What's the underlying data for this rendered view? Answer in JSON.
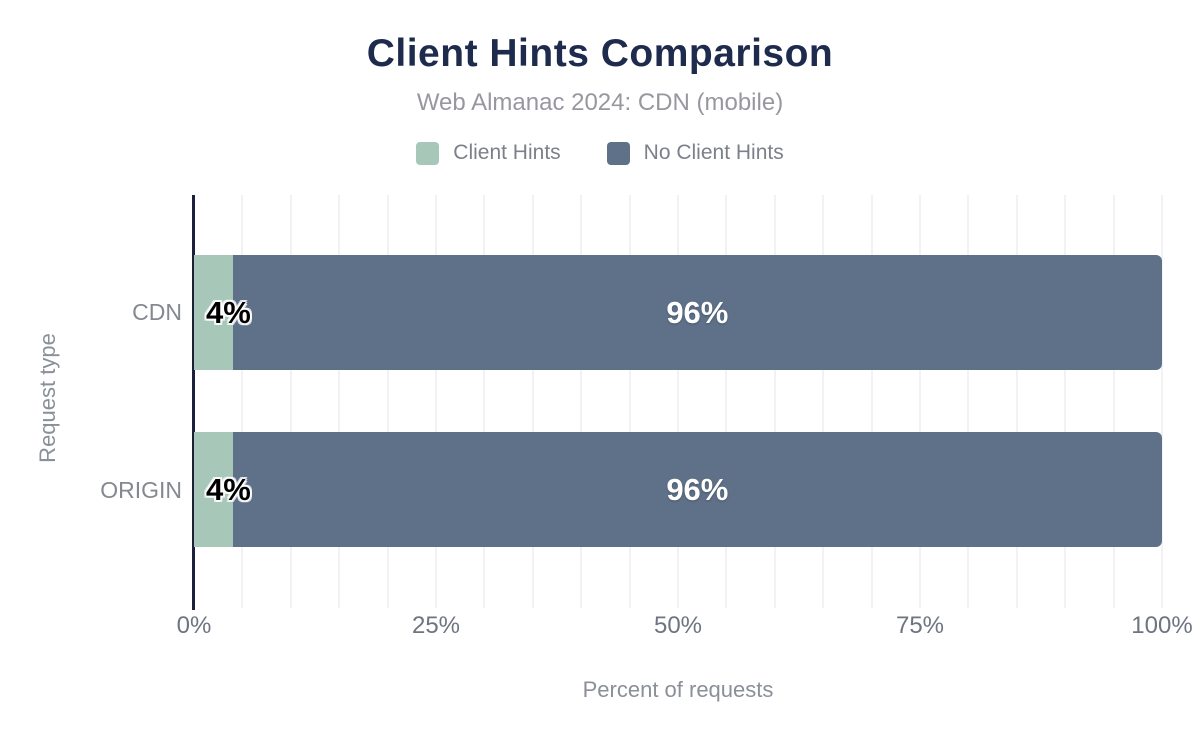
{
  "chart_data": {
    "type": "bar",
    "orientation": "horizontal-stacked",
    "title": "Client Hints Comparison",
    "subtitle": "Web Almanac 2024: CDN (mobile)",
    "categories": [
      "CDN",
      "ORIGIN"
    ],
    "series": [
      {
        "name": "Client Hints",
        "color": "#a7c8b8",
        "values": [
          4,
          4
        ]
      },
      {
        "name": "No Client Hints",
        "color": "#5f7189",
        "values": [
          96,
          96
        ]
      }
    ],
    "data_labels": {
      "client_hints": [
        "4%",
        "4%"
      ],
      "no_client_hints": [
        "96%",
        "96%"
      ]
    },
    "xlabel": "Percent of requests",
    "ylabel": "Request type",
    "x_ticks": [
      "0%",
      "25%",
      "50%",
      "75%",
      "100%"
    ],
    "x_tick_positions_pct": [
      0,
      25,
      50,
      75,
      100
    ],
    "xlim": [
      0,
      100
    ],
    "grid": {
      "step_pct": 5,
      "max_pct": 100,
      "color": "#f2f2f5"
    },
    "legend_position": "top-center"
  },
  "colors": {
    "title": "#1e2b4d",
    "subtitle": "#97979f",
    "axis_line": "#1a2138",
    "tick_label": "#6e7480",
    "axis_title": "#8a8f98",
    "background": "#ffffff"
  }
}
